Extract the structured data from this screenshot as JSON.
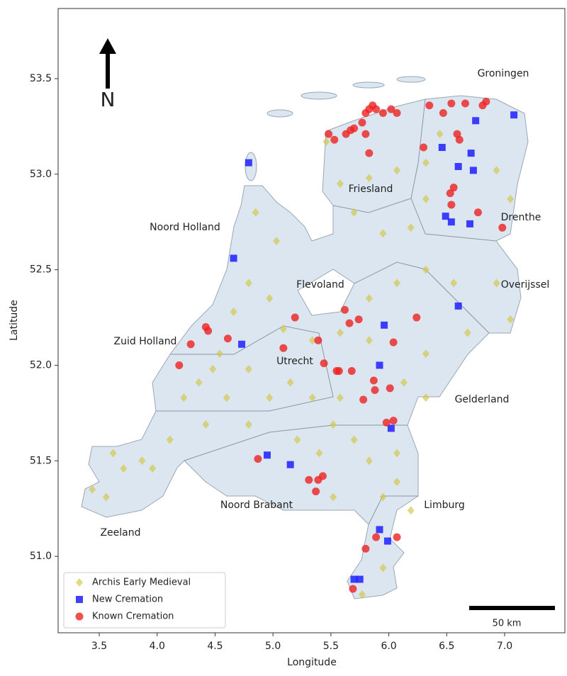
{
  "chart_data": {
    "type": "scatter",
    "x_label": "Longitude",
    "y_label": "Latitude",
    "xlim": [
      3.145,
      7.52
    ],
    "ylim": [
      50.6,
      53.867
    ],
    "xticks": [
      3.5,
      {
        "value": 4,
        "label": "4.0"
      },
      4.5,
      {
        "value": 5,
        "label": "5.0"
      },
      5.5,
      {
        "value": 6,
        "label": "6.0"
      },
      6.5,
      {
        "value": 7,
        "label": "7.0"
      }
    ],
    "yticks": [
      {
        "value": 51,
        "label": "51.0"
      },
      51.5,
      {
        "value": 52,
        "label": "52.0"
      },
      52.5,
      {
        "value": 53,
        "label": "53.0"
      },
      53.5
    ],
    "legend_position": "lower left",
    "annotations": [
      "Groningen",
      "Friesland",
      "Drenthe",
      "Noord Holland",
      "Flevoland",
      "Overijssel",
      "Zuid Holland",
      "Utrecht",
      "Gelderland",
      "Noord Brabant",
      "Limburg",
      "Zeeland"
    ],
    "north_label": "N",
    "scale_label": "50 km",
    "series": [
      {
        "name": "Archis Early Medieval",
        "color": "#d2c640",
        "marker": "diamond",
        "x": [
          3.62,
          3.71,
          3.87,
          3.96,
          3.44,
          3.56,
          4.11,
          4.23,
          4.36,
          4.48,
          4.6,
          4.79,
          4.97,
          5.15,
          5.34,
          5.52,
          5.7,
          5.83,
          6.07,
          6.19,
          5.95,
          5.52,
          5.21,
          4.79,
          4.66,
          4.79,
          4.85,
          5.03,
          5.34,
          5.58,
          5.83,
          6.07,
          6.32,
          6.56,
          6.93,
          7.05,
          6.68,
          6.32,
          6.13,
          6.32,
          5.83,
          5.58,
          5.83,
          6.07,
          6.32,
          6.93,
          7.05,
          6.44,
          5.7,
          5.95,
          6.19,
          5.46,
          5.09,
          4.42,
          5.4,
          5.58,
          5.95,
          5.77,
          4.97,
          4.54,
          6.07,
          6.32
        ],
        "values": [
          51.54,
          51.46,
          51.5,
          51.46,
          51.35,
          51.31,
          51.61,
          51.83,
          51.91,
          51.98,
          51.83,
          51.69,
          51.83,
          51.91,
          51.83,
          51.69,
          51.61,
          51.5,
          51.39,
          51.24,
          51.31,
          51.31,
          51.61,
          51.98,
          52.28,
          52.43,
          52.8,
          52.65,
          52.13,
          52.17,
          52.35,
          52.43,
          52.5,
          52.43,
          52.43,
          52.24,
          52.17,
          52.06,
          51.91,
          51.83,
          52.13,
          52.95,
          52.98,
          53.02,
          53.06,
          53.02,
          52.87,
          53.21,
          52.8,
          52.69,
          52.72,
          53.17,
          52.19,
          51.69,
          51.54,
          51.83,
          50.94,
          50.8,
          52.35,
          52.06,
          51.54,
          52.87
        ]
      },
      {
        "name": "New Cremation",
        "color": "#1f1fff",
        "marker": "square",
        "x": [
          4.79,
          4.66,
          4.73,
          4.95,
          5.15,
          5.92,
          5.96,
          6.02,
          5.92,
          5.99,
          5.7,
          5.75,
          7.08,
          6.75,
          6.46,
          6.6,
          6.73,
          6.71,
          6.49,
          6.54,
          6.7,
          6.6
        ],
        "values": [
          53.06,
          52.56,
          52.11,
          51.53,
          51.48,
          52.0,
          52.21,
          51.67,
          51.14,
          51.08,
          50.88,
          50.88,
          53.31,
          53.28,
          53.14,
          53.04,
          53.02,
          53.11,
          52.78,
          52.75,
          52.74,
          52.31
        ]
      },
      {
        "name": "Known Cremation",
        "color": "#ee2222",
        "marker": "circle",
        "x": [
          5.48,
          5.53,
          5.63,
          5.67,
          5.7,
          5.77,
          5.8,
          5.83,
          5.86,
          5.89,
          5.95,
          6.02,
          6.07,
          5.8,
          5.83,
          6.35,
          6.47,
          6.54,
          6.66,
          6.81,
          6.84,
          6.59,
          6.61,
          6.3,
          6.53,
          6.56,
          6.54,
          6.77,
          6.98,
          6.24,
          5.62,
          5.74,
          5.66,
          6.04,
          5.19,
          5.39,
          5.09,
          4.61,
          4.42,
          4.44,
          4.29,
          4.19,
          5.44,
          5.55,
          5.57,
          5.68,
          5.87,
          5.88,
          6.01,
          5.78,
          5.98,
          6.04,
          4.87,
          5.31,
          5.39,
          5.43,
          5.37,
          5.8,
          5.89,
          6.07,
          5.69
        ],
        "values": [
          53.21,
          53.18,
          53.21,
          53.23,
          53.24,
          53.27,
          53.32,
          53.34,
          53.36,
          53.34,
          53.32,
          53.34,
          53.32,
          53.21,
          53.11,
          53.36,
          53.32,
          53.37,
          53.37,
          53.36,
          53.38,
          53.21,
          53.18,
          53.14,
          52.9,
          52.93,
          52.84,
          52.8,
          52.72,
          52.25,
          52.29,
          52.24,
          52.22,
          52.12,
          52.25,
          52.13,
          52.09,
          52.14,
          52.2,
          52.18,
          52.11,
          52.0,
          52.01,
          51.97,
          51.97,
          51.97,
          51.92,
          51.87,
          51.88,
          51.82,
          51.7,
          51.71,
          51.51,
          51.4,
          51.4,
          51.42,
          51.34,
          51.04,
          51.1,
          51.1,
          50.83
        ]
      }
    ]
  }
}
